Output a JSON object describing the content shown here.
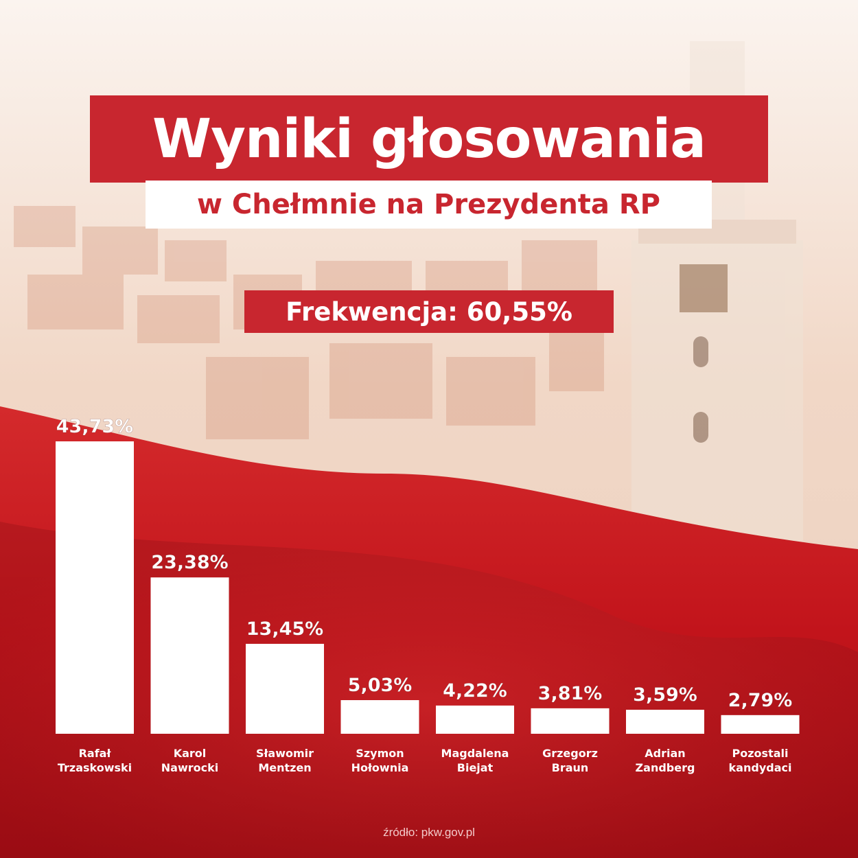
{
  "header": {
    "title": "Wyniki głosowania",
    "subtitle": "w Chełmnie na Prezydenta RP",
    "turnout": "Frekwencja: 60,55%"
  },
  "footer": {
    "source": "źródło: pkw.gov.pl"
  },
  "colors": {
    "accent": "#c8262f",
    "bar": "#ffffff",
    "background_top": "#f6e6dc",
    "background_bottom": "#c0141c"
  },
  "chart_data": {
    "type": "bar",
    "categories": [
      [
        "Rafał",
        "Trzaskowski"
      ],
      [
        "Karol",
        "Nawrocki"
      ],
      [
        "Sławomir",
        "Mentzen"
      ],
      [
        "Szymon",
        "Hołownia"
      ],
      [
        "Magdalena",
        "Biejat"
      ],
      [
        "Grzegorz",
        "Braun"
      ],
      [
        "Adrian",
        "Zandberg"
      ],
      [
        "Pozostali",
        "kandydaci"
      ]
    ],
    "values": [
      43.73,
      23.38,
      13.45,
      5.03,
      4.22,
      3.81,
      3.59,
      2.79
    ],
    "value_labels": [
      "43,73%",
      "23,38%",
      "13,45%",
      "5,03%",
      "4,22%",
      "3,81%",
      "3,59%",
      "2,79%"
    ],
    "ylim": [
      0,
      43.73
    ],
    "grid": false,
    "legend": false
  }
}
